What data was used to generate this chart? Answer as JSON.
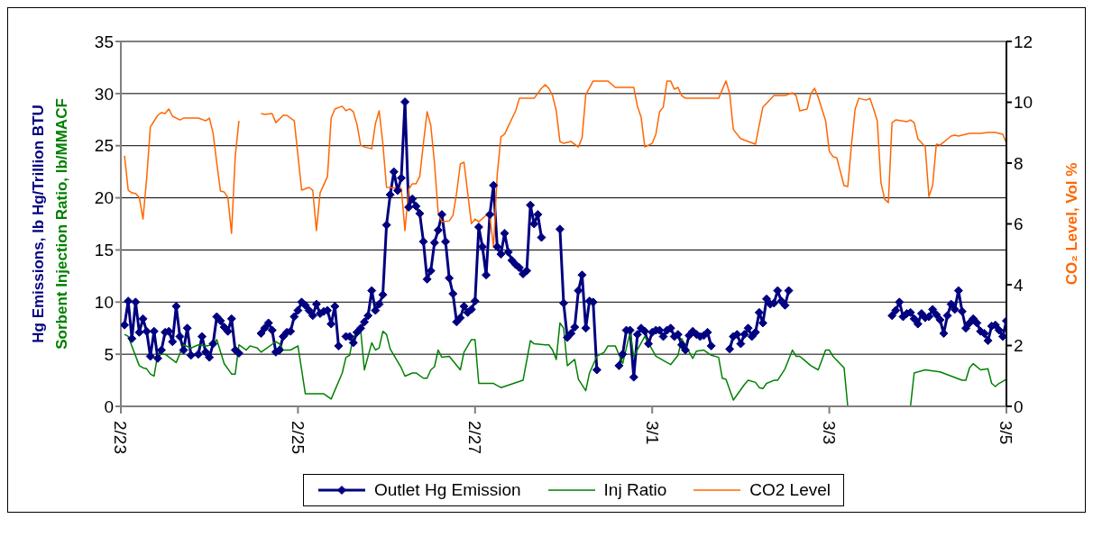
{
  "chart_data": {
    "type": "line",
    "ylabel": "Hg Emissions, lb Hg/Trillion BTU\nSorbent Injection Ratio, lb/MMACF",
    "y2label": "CO₂ Level, Vol %",
    "xlim": [
      "--02-23",
      "--03-05"
    ],
    "xticks": [
      {
        "value": "--02-23",
        "label": "2/23"
      },
      {
        "value": "--02-25",
        "label": "2/25"
      },
      {
        "value": "--02-27",
        "label": "2/27"
      },
      {
        "value": "--03-01",
        "label": "3/1"
      },
      {
        "value": "--03-03",
        "label": "3/3"
      },
      {
        "value": "--03-05",
        "label": "3/5"
      }
    ],
    "ylim": [
      0,
      35
    ],
    "yticks": [
      0,
      5,
      10,
      15,
      20,
      25,
      30,
      35
    ],
    "y2lim": [
      0,
      12
    ],
    "y2ticks": [
      0,
      2,
      4,
      6,
      8,
      10,
      12
    ],
    "grid": "y",
    "legend": "bottom",
    "series": [
      {
        "name": "Outlet Hg Emission",
        "color": "#000080",
        "marker": "diamond",
        "x": [
          "--02-23T01:00",
          "--02-23T02:00",
          "--02-23T03:00",
          "--02-23T04:00",
          "--02-23T05:00",
          "--02-23T06:00",
          "--02-23T07:00",
          "--02-23T08:00",
          "--02-23T09:00",
          "--02-23T10:00",
          "--02-23T11:00",
          "--02-23T12:00",
          "--02-23T13:00",
          "--02-23T14:00",
          "--02-23T15:00",
          "--02-23T16:00",
          "--02-23T17:00",
          "--02-23T18:00",
          "--02-23T19:00",
          "--02-23T21:00",
          "--02-23T22:00",
          "--02-23T23:00",
          "--02-24T00:00",
          "--02-24T01:00",
          "--02-24T02:00",
          "--02-24T03:00",
          "--02-24T04:00",
          "--02-24T05:00",
          "--02-24T06:00",
          "--02-24T07:00",
          "--02-24T08:00",
          "--02-24T11:00",
          "--02-24T14:00",
          "--02-24T15:00",
          "--02-24T16:00",
          "--02-24T17:00",
          "--02-24T18:00",
          "--02-24T19:00",
          "--02-24T20:00",
          "--02-24T21:00",
          "--02-24T22:00",
          "--02-24T23:00",
          "--02-25T00:00",
          "--02-25T01:00",
          "--02-25T02:00",
          "--02-25T03:00",
          "--02-25T04:00",
          "--02-25T05:00",
          "--02-25T06:00",
          "--02-25T07:00",
          "--02-25T08:00",
          "--02-25T09:00",
          "--02-25T10:00",
          "--02-25T11:00",
          "--02-25T12:00",
          "--02-25T13:00",
          "--02-25T14:00",
          "--02-25T15:00",
          "--02-25T16:00",
          "--02-25T17:00",
          "--02-25T18:00",
          "--02-25T19:00",
          "--02-25T20:00",
          "--02-25T21:00",
          "--02-25T22:00",
          "--02-25T23:00",
          "--02-26T00:00",
          "--02-26T01:00",
          "--02-26T02:00",
          "--02-26T03:00",
          "--02-26T04:00",
          "--02-26T05:00",
          "--02-26T06:00",
          "--02-26T07:00",
          "--02-26T08:00",
          "--02-26T09:00",
          "--02-26T10:00",
          "--02-26T11:00",
          "--02-26T12:00",
          "--02-26T13:00",
          "--02-26T14:00",
          "--02-26T15:00",
          "--02-26T16:00",
          "--02-26T17:00",
          "--02-26T18:00",
          "--02-26T19:00",
          "--02-26T20:00",
          "--02-26T21:00",
          "--02-26T22:00",
          "--02-26T23:00",
          "--02-27T00:00",
          "--02-27T01:00",
          "--02-27T02:00",
          "--02-27T03:00",
          "--02-27T04:00",
          "--02-27T05:00",
          "--02-27T06:00",
          "--02-27T07:00",
          "--02-27T08:00",
          "--02-27T09:00",
          "--02-27T10:00",
          "--02-27T11:00",
          "--02-27T12:00",
          "--02-27T13:00",
          "--02-27T14:00",
          "--02-27T15:00",
          "--02-27T16:00",
          "--02-27T17:00",
          "--02-27T18:00",
          "--02-27T20:00",
          "--02-27T23:00",
          "--02-28T00:00",
          "--02-28T01:00",
          "--02-28T02:00",
          "--02-28T03:00",
          "--02-28T04:00",
          "--02-28T05:00",
          "--02-28T06:00",
          "--02-28T07:00",
          "--02-28T08:00",
          "--02-28T09:00",
          "--02-28T12:00",
          "--02-28T15:00",
          "--02-28T16:00",
          "--02-28T17:00",
          "--02-28T18:00",
          "--02-28T19:00",
          "--02-28T20:00",
          "--02-28T21:00",
          "--02-28T22:00",
          "--02-28T23:00",
          "--03-01T00:00",
          "--03-01T01:00",
          "--03-01T02:00",
          "--03-01T03:00",
          "--03-01T04:00",
          "--03-01T05:00",
          "--03-01T06:00",
          "--03-01T07:00",
          "--03-01T08:00",
          "--03-01T09:00",
          "--03-01T10:00",
          "--03-01T11:00",
          "--03-01T12:00",
          "--03-01T13:00",
          "--03-01T14:00",
          "--03-01T15:00",
          "--03-01T16:00",
          "--03-01T19:00",
          "--03-01T21:00",
          "--03-01T22:00",
          "--03-01T23:00",
          "--03-02T00:00",
          "--03-02T01:00",
          "--03-02T02:00",
          "--03-02T03:00",
          "--03-02T04:00",
          "--03-02T05:00",
          "--03-02T06:00",
          "--03-02T07:00",
          "--03-02T08:00",
          "--03-02T09:00",
          "--03-02T10:00",
          "--03-02T11:00",
          "--03-02T12:00",
          "--03-02T13:00",
          "--03-03T03:00",
          "--03-03T17:00",
          "--03-03T18:00",
          "--03-03T19:00",
          "--03-03T20:00",
          "--03-03T21:00",
          "--03-03T22:00",
          "--03-03T23:00",
          "--03-04T00:00",
          "--03-04T01:00",
          "--03-04T02:00",
          "--03-04T03:00",
          "--03-04T04:00",
          "--03-04T05:00",
          "--03-04T06:00",
          "--03-04T07:00",
          "--03-04T08:00",
          "--03-04T09:00",
          "--03-04T10:00",
          "--03-04T11:00",
          "--03-04T12:00",
          "--03-04T13:00",
          "--03-04T14:00",
          "--03-04T15:00",
          "--03-04T16:00",
          "--03-04T17:00",
          "--03-04T18:00",
          "--03-04T19:00",
          "--03-04T20:00",
          "--03-04T21:00",
          "--03-04T22:00",
          "--03-04T23:00",
          "--03-05T00:00"
        ],
        "values": [
          7.8,
          10.1,
          6.5,
          10.0,
          7.1,
          8.4,
          7.2,
          4.8,
          7.2,
          4.6,
          5.4,
          7.1,
          7.2,
          6.2,
          9.6,
          6.7,
          5.4,
          7.5,
          4.9,
          5.0,
          6.7,
          5.2,
          4.7,
          6.0,
          8.6,
          8.2,
          7.6,
          7.2,
          8.4,
          5.4,
          5.1,
          null,
          7.0,
          7.5,
          8.0,
          7.3,
          5.2,
          5.4,
          6.7,
          7.1,
          7.2,
          8.6,
          9.2,
          10.0,
          9.7,
          9.2,
          8.7,
          9.8,
          8.9,
          9.1,
          9.2,
          7.9,
          9.6,
          5.8,
          null,
          6.7,
          6.7,
          6.1,
          7.1,
          7.5,
          8.1,
          8.7,
          11.1,
          9.2,
          9.8,
          10.7,
          17.4,
          20.3,
          22.5,
          20.7,
          21.9,
          29.2,
          19.1,
          19.9,
          19.2,
          18.5,
          15.8,
          12.2,
          13.0,
          15.7,
          16.9,
          18.4,
          15.8,
          12.3,
          10.8,
          8.1,
          8.5,
          9.6,
          9.0,
          9.3,
          10.1,
          17.2,
          15.3,
          12.6,
          18.4,
          21.2,
          15.3,
          14.6,
          16.6,
          14.8,
          14.0,
          13.6,
          13.3,
          12.7,
          13.0,
          19.3,
          17.5,
          18.4,
          16.2,
          null,
          17.0,
          9.9,
          6.6,
          7.0,
          7.6,
          11.1,
          12.6,
          7.5,
          10.1,
          10.0,
          3.5,
          null,
          3.9,
          5.0,
          7.3,
          7.3,
          2.8,
          6.9,
          7.5,
          7.2,
          6.0,
          7.1,
          7.3,
          7.3,
          6.7,
          7.3,
          7.5,
          6.7,
          6.9,
          5.9,
          5.4,
          6.8,
          7.2,
          6.9,
          6.7,
          6.8,
          7.1,
          5.8,
          null,
          5.5,
          6.7,
          6.9,
          6.0,
          6.9,
          7.5,
          6.7,
          7.1,
          9.0,
          8.0,
          10.3,
          9.8,
          9.9,
          11.1,
          10.1,
          9.7,
          11.1,
          null,
          8.7,
          9.2,
          10.0,
          8.6,
          8.9,
          9.0,
          8.4,
          7.9,
          8.9,
          8.5,
          8.6,
          9.3,
          8.8,
          8.3,
          7.0,
          8.7,
          9.8,
          9.3,
          11.1,
          9.1,
          7.5,
          8.0,
          8.4,
          8.0,
          7.2,
          7.0,
          6.3,
          7.7,
          7.8,
          7.3,
          6.7,
          8.2
        ]
      },
      {
        "name": "Inj Ratio",
        "color": "#008000",
        "marker": "none",
        "x": [
          "--02-23T01:00",
          "--02-23T02:00",
          "--02-23T05:00",
          "--02-23T06:00",
          "--02-23T07:00",
          "--02-23T08:00",
          "--02-23T09:00",
          "--02-23T10:00",
          "--02-23T12:00",
          "--02-23T15:00",
          "--02-23T17:00",
          "--02-23T19:00",
          "--02-23T21:00",
          "--02-23T23:00",
          "--02-24T01:00",
          "--02-24T02:00",
          "--02-24T04:00",
          "--02-24T06:00",
          "--02-24T07:00",
          "--02-24T08:00",
          "--02-24T10:00",
          "--02-24T11:00",
          "--02-24T13:00",
          "--02-24T14:00",
          "--02-24T18:00",
          "--02-24T19:00",
          "--02-24T20:00",
          "--02-24T22:00",
          "--02-25T00:00",
          "--02-25T02:00",
          "--02-25T07:00",
          "--02-25T09:00",
          "--02-25T12:00",
          "--02-25T13:00",
          "--02-25T14:00",
          "--02-25T15:00",
          "--02-25T17:00",
          "--02-25T18:00",
          "--02-25T20:00",
          "--02-25T21:00",
          "--02-25T22:00",
          "--02-25T23:00",
          "--02-26T00:00",
          "--02-26T01:00",
          "--02-26T04:00",
          "--02-26T05:00",
          "--02-26T07:00",
          "--02-26T08:00",
          "--02-26T10:00",
          "--02-26T11:00",
          "--02-26T12:00",
          "--02-26T13:00",
          "--02-26T14:00",
          "--02-26T15:00",
          "--02-26T17:00",
          "--02-26T20:00",
          "--02-26T21:00",
          "--02-26T23:00",
          "--02-27T00:00",
          "--02-27T01:00",
          "--02-27T05:00",
          "--02-27T07:00",
          "--02-27T13:00",
          "--02-27T15:00",
          "--02-27T16:00",
          "--02-27T19:00",
          "--02-27T20:00",
          "--02-27T21:00",
          "--02-27T22:00",
          "--02-27T23:00",
          "--02-28T00:00",
          "--02-28T01:00",
          "--02-28T03:00",
          "--02-28T04:00",
          "--02-28T06:00",
          "--02-28T07:00",
          "--02-28T09:00",
          "--02-28T11:00",
          "--02-28T12:00",
          "--02-28T14:00",
          "--02-28T16:00",
          "--02-28T18:00",
          "--02-28T19:00",
          "--02-28T22:00",
          "--03-01T01:00",
          "--03-01T05:00",
          "--03-01T07:00",
          "--03-01T08:00",
          "--03-01T11:00",
          "--03-01T12:00",
          "--03-01T14:00",
          "--03-01T16:00",
          "--03-01T18:00",
          "--03-01T19:00",
          "--03-01T20:00",
          "--03-01T22:00",
          "--03-02T01:00",
          "--03-02T02:00",
          "--03-02T04:00",
          "--03-02T05:00",
          "--03-02T06:00",
          "--03-02T07:00",
          "--03-02T09:00",
          "--03-02T10:00",
          "--03-02T12:00",
          "--03-02T14:00",
          "--03-02T15:00",
          "--03-02T16:00",
          "--03-02T17:00",
          "--03-02T19:00",
          "--03-02T21:00",
          "--03-02T23:00",
          "--03-03T00:00",
          "--03-03T01:00",
          "--03-03T04:00",
          "--03-03T05:00",
          "--03-03T22:00",
          "--03-03T23:00",
          "--03-04T02:00",
          "--03-04T06:00",
          "--03-04T12:00",
          "--03-04T13:00",
          "--03-04T14:00",
          "--03-04T15:00",
          "--03-04T17:00",
          "--03-04T19:00",
          "--03-04T20:00",
          "--03-04T21:00",
          "--03-04T22:00",
          "--03-05T00:00"
        ],
        "values": [
          6.9,
          6.7,
          3.9,
          3.7,
          3.6,
          3.1,
          2.9,
          5.0,
          5.0,
          4.2,
          5.9,
          5.6,
          5.9,
          5.8,
          5.9,
          6.4,
          4.1,
          3.1,
          3.1,
          5.9,
          5.4,
          5.8,
          5.6,
          5.2,
          6.2,
          6.0,
          5.4,
          5.4,
          5.8,
          1.2,
          1.2,
          0.7,
          3.2,
          4.7,
          4.9,
          6.7,
          7.3,
          3.5,
          6.1,
          5.4,
          5.6,
          7.2,
          6.9,
          5.5,
          3.7,
          2.9,
          3.2,
          3.2,
          2.7,
          2.7,
          3.5,
          3.8,
          5.4,
          4.7,
          4.8,
          3.5,
          5.2,
          6.4,
          6.4,
          2.2,
          2.2,
          1.8,
          2.5,
          6.3,
          6.0,
          5.9,
          5.9,
          5.4,
          4.5,
          8.0,
          7.5,
          3.9,
          4.5,
          2.6,
          1.5,
          3.2,
          4.8,
          5.2,
          5.8,
          5.8,
          4.1,
          7.1,
          4.8,
          6.7,
          4.8,
          4.0,
          4.9,
          6.5,
          4.6,
          5.3,
          5.4,
          4.9,
          4.7,
          2.7,
          2.6,
          0.6,
          2.1,
          2.5,
          2.3,
          1.8,
          1.7,
          2.2,
          2.5,
          2.5,
          3.6,
          5.4,
          4.8,
          4.8,
          4.5,
          3.9,
          3.5,
          5.4,
          5.4,
          4.8,
          3.7,
          0,
          0,
          3.2,
          3.5,
          3.3,
          2.5,
          2.5,
          3.7,
          4.1,
          3.5,
          3.6,
          2.2,
          1.9,
          2.2,
          2.6
        ]
      },
      {
        "name": "CO2 Level",
        "color": "#ff6600",
        "marker": "none",
        "axis": "y2",
        "x": [
          "--02-23T01:00",
          "--02-23T02:00",
          "--02-23T03:00",
          "--02-23T04:00",
          "--02-23T05:00",
          "--02-23T06:00",
          "--02-23T07:00",
          "--02-23T08:00",
          "--02-23T10:00",
          "--02-23T11:00",
          "--02-23T12:00",
          "--02-23T13:00",
          "--02-23T14:00",
          "--02-23T16:00",
          "--02-23T17:00",
          "--02-23T21:00",
          "--02-23T23:00",
          "--02-24T00:00",
          "--02-24T01:00",
          "--02-24T02:00",
          "--02-24T03:00",
          "--02-24T04:00",
          "--02-24T05:00",
          "--02-24T06:00",
          "--02-24T07:00",
          "--02-24T08:00",
          "--02-24T11:00",
          "--02-24T14:00",
          "--02-24T15:00",
          "--02-24T17:00",
          "--02-24T18:00",
          "--02-24T20:00",
          "--02-24T21:00",
          "--02-24T23:00",
          "--02-25T01:00",
          "--02-25T03:00",
          "--02-25T04:00",
          "--02-25T05:00",
          "--02-25T06:00",
          "--02-25T08:00",
          "--02-25T09:00",
          "--02-25T10:00",
          "--02-25T12:00",
          "--02-25T13:00",
          "--02-25T14:00",
          "--02-25T15:00",
          "--02-25T16:00",
          "--02-25T17:00",
          "--02-25T18:00",
          "--02-25T20:00",
          "--02-25T21:00",
          "--02-25T22:00",
          "--02-25T23:00",
          "--02-26T00:00",
          "--02-26T04:00",
          "--02-26T05:00",
          "--02-26T06:00",
          "--02-26T07:00",
          "--02-26T08:00",
          "--02-26T09:00",
          "--02-26T10:00",
          "--02-26T11:00",
          "--02-26T12:00",
          "--02-26T13:00",
          "--02-26T14:00",
          "--02-26T15:00",
          "--02-26T17:00",
          "--02-26T18:00",
          "--02-26T19:00",
          "--02-26T20:00",
          "--02-26T21:00",
          "--02-26T23:00",
          "--02-27T00:00",
          "--02-27T01:00",
          "--02-27T03:00",
          "--02-27T04:00",
          "--02-27T05:00",
          "--02-27T06:00",
          "--02-27T07:00",
          "--02-27T08:00",
          "--02-27T09:00",
          "--02-27T11:00",
          "--02-27T12:00",
          "--02-27T16:00",
          "--02-27T18:00",
          "--02-27T19:00",
          "--02-27T20:00",
          "--02-27T21:00",
          "--02-27T22:00",
          "--02-27T23:00",
          "--02-28T00:00",
          "--02-28T02:00",
          "--02-28T04:00",
          "--02-28T05:00",
          "--02-28T06:00",
          "--02-28T08:00",
          "--02-28T12:00",
          "--02-28T14:00",
          "--02-28T19:00",
          "--02-28T20:00",
          "--02-28T21:00",
          "--02-28T22:00",
          "--03-01T00:00",
          "--03-01T01:00",
          "--03-01T02:00",
          "--03-01T03:00",
          "--03-01T04:00",
          "--03-01T05:00",
          "--03-01T06:00",
          "--03-01T07:00",
          "--03-01T08:00",
          "--03-01T09:00",
          "--03-01T16:00",
          "--03-01T18:00",
          "--03-01T20:00",
          "--03-01T21:00",
          "--03-01T22:00",
          "--03-02T00:00",
          "--03-02T02:00",
          "--03-02T04:00",
          "--03-02T05:00",
          "--03-02T06:00",
          "--03-02T09:00",
          "--03-02T12:00",
          "--03-02T14:00",
          "--03-02T15:00",
          "--03-02T16:00",
          "--03-02T18:00",
          "--03-02T19:00",
          "--03-02T20:00",
          "--03-02T21:00",
          "--03-02T23:00",
          "--03-03T00:00",
          "--03-03T01:00",
          "--03-03T02:00",
          "--03-03T04:00",
          "--03-03T05:00",
          "--03-03T06:00",
          "--03-03T07:00",
          "--03-03T08:00",
          "--03-03T10:00",
          "--03-03T11:00",
          "--03-03T12:00",
          "--03-03T13:00",
          "--03-03T14:00",
          "--03-03T15:00",
          "--03-03T16:00",
          "--03-03T17:00",
          "--03-03T18:00",
          "--03-03T21:00",
          "--03-03T22:00",
          "--03-03T23:00",
          "--03-04T00:00",
          "--03-04T02:00",
          "--03-04T03:00",
          "--03-04T04:00",
          "--03-04T05:00",
          "--03-04T06:00",
          "--03-04T09:00",
          "--03-04T10:00",
          "--03-04T11:00",
          "--03-04T14:00",
          "--03-04T17:00",
          "--03-04T19:00",
          "--03-04T21:00",
          "--03-04T23:00",
          "--03-05T00:00"
        ],
        "values": [
          8.24,
          7.11,
          7.02,
          7.0,
          6.87,
          6.16,
          7.5,
          9.19,
          9.57,
          9.66,
          9.63,
          9.78,
          9.54,
          9.42,
          9.48,
          9.48,
          9.39,
          9.48,
          8.98,
          8.0,
          7.08,
          7.05,
          6.87,
          5.69,
          8.21,
          9.39,
          null,
          9.63,
          9.6,
          9.63,
          9.33,
          9.57,
          9.57,
          9.39,
          7.11,
          7.2,
          7.11,
          5.78,
          7.02,
          7.56,
          9.48,
          9.78,
          9.87,
          9.72,
          9.78,
          9.69,
          9.27,
          8.59,
          8.53,
          8.47,
          9.3,
          9.72,
          8.65,
          7.2,
          7.17,
          5.78,
          7.14,
          7.32,
          7.32,
          7.56,
          8.65,
          9.69,
          9.24,
          8.0,
          6.37,
          6.07,
          6.1,
          6.28,
          7.02,
          7.97,
          8.03,
          6.01,
          6.16,
          6.07,
          6.28,
          6.25,
          5.24,
          7.61,
          8.86,
          8.95,
          9.21,
          9.72,
          10.13,
          10.13,
          10.46,
          10.58,
          10.46,
          10.22,
          9.72,
          8.71,
          8.65,
          8.71,
          8.53,
          8.83,
          10.25,
          10.7,
          10.7,
          10.49,
          10.49,
          9.87,
          9.51,
          8.53,
          8.65,
          8.95,
          9.69,
          9.84,
          10.7,
          10.7,
          10.43,
          10.49,
          10.22,
          10.13,
          10.13,
          10.13,
          10.7,
          10.28,
          9.1,
          8.8,
          8.71,
          8.62,
          9.24,
          9.84,
          10.22,
          10.22,
          10.31,
          10.22,
          9.72,
          9.78,
          10.28,
          10.46,
          10.16,
          9.39,
          8.39,
          8.21,
          8.18,
          7.26,
          7.23,
          8.59,
          9.78,
          10.13,
          10.07,
          10.13,
          9.78,
          9.39,
          7.35,
          6.81,
          6.7,
          9.33,
          9.42,
          9.36,
          9.42,
          9.33,
          8.8,
          8.53,
          6.9,
          7.26,
          8.62,
          8.59,
          8.89,
          8.92,
          8.89,
          8.98,
          8.98,
          9.01,
          9.01,
          8.95,
          8.65
        ]
      }
    ]
  }
}
